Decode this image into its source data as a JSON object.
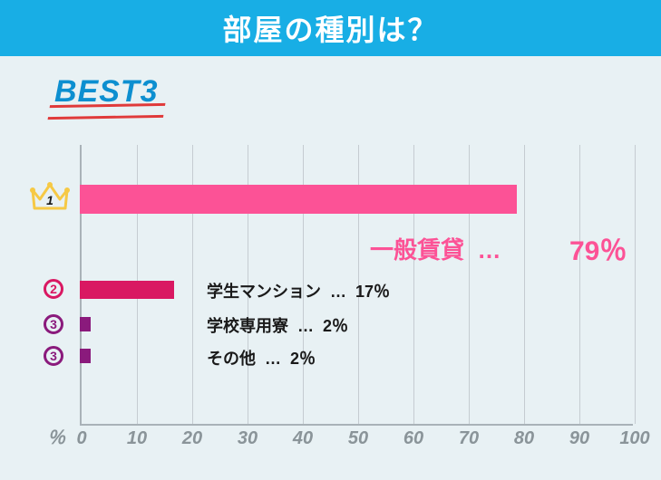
{
  "header": {
    "title": "部屋の種別は？"
  },
  "badge": {
    "text": "BEST3"
  },
  "chart": {
    "type": "bar",
    "xlim": [
      0,
      100
    ],
    "xtick_step": 10,
    "xticks": [
      0,
      10,
      20,
      30,
      40,
      50,
      60,
      70,
      80,
      90,
      100
    ],
    "pct_symbol": "％",
    "grid_color": "#c5ccd1",
    "axis_color": "#a9b2b8",
    "tick_label_color": "#8a9499",
    "tick_fontsize": 20,
    "background_color": "#e8f1f4",
    "bars": [
      {
        "rank": "1",
        "label": "一般賃貸",
        "sep": "…",
        "value": 79,
        "pct": "79％",
        "color": "#fc5296",
        "highlight": true
      },
      {
        "rank": "2",
        "label": "学生マンション",
        "sep": "…",
        "value": 17,
        "pct": "17％",
        "color": "#d91862",
        "highlight": false
      },
      {
        "rank": "3",
        "label": "学校専用寮",
        "sep": "…",
        "value": 2,
        "pct": "2％",
        "color": "#8a1a7c",
        "highlight": false
      },
      {
        "rank": "3",
        "label": "その他",
        "sep": "…",
        "value": 2,
        "pct": "2％",
        "color": "#8a1a7c",
        "highlight": false
      }
    ],
    "highlight_color": "#fc5296",
    "rank_colors": {
      "1": "#f6c945",
      "2": "#d91862",
      "3": "#8a1a7c"
    }
  }
}
